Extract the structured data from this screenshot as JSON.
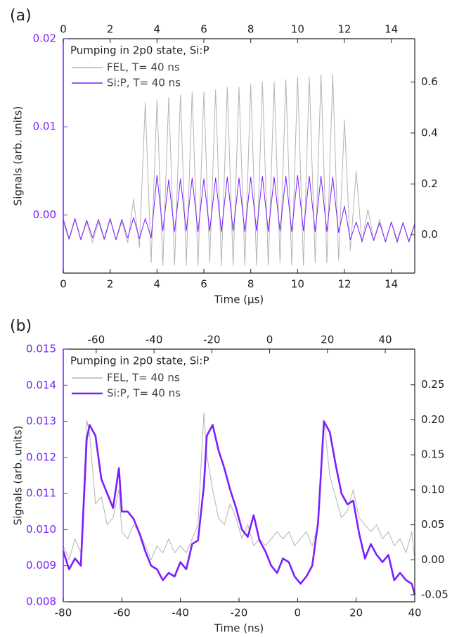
{
  "chart_data": [
    {
      "type": "line",
      "label": "(a)",
      "legend_title": "Pumping in 2p0 state, Si:P",
      "x_label": "Time (µs)",
      "y_label": "Signals (arb. units)",
      "xlim": [
        0,
        15
      ],
      "xticks": [
        0,
        2,
        4,
        6,
        8,
        10,
        12,
        14
      ],
      "x2lim": [
        0,
        15
      ],
      "x2ticks": [
        0,
        2,
        4,
        6,
        8,
        10,
        12,
        14
      ],
      "ylim": [
        -0.0066,
        0.02
      ],
      "yticks": [
        {
          "value": 0,
          "label": "0.00"
        },
        {
          "value": 0.01,
          "label": "0.01"
        },
        {
          "value": 0.02,
          "label": "0.02"
        }
      ],
      "y2lim": [
        -0.15,
        0.77
      ],
      "y2ticks": [
        {
          "value": 0,
          "label": "0.0"
        },
        {
          "value": 0.2,
          "label": "0.2"
        },
        {
          "value": 0.4,
          "label": "0.4"
        },
        {
          "value": 0.6,
          "label": "0.6"
        }
      ],
      "x": [
        0,
        0.25,
        0.5,
        0.75,
        1,
        1.25,
        1.5,
        1.75,
        2,
        2.25,
        2.5,
        2.75,
        3,
        3.25,
        3.5,
        3.75,
        4,
        4.25,
        4.5,
        4.75,
        5,
        5.25,
        5.5,
        5.75,
        6,
        6.25,
        6.5,
        6.75,
        7,
        7.25,
        7.5,
        7.75,
        8,
        8.25,
        8.5,
        8.75,
        9,
        9.25,
        9.5,
        9.75,
        10,
        10.25,
        10.5,
        10.75,
        11,
        11.25,
        11.5,
        11.75,
        12,
        12.25,
        12.5,
        12.75,
        13,
        13.25,
        13.5,
        13.75,
        14,
        14.25,
        14.5,
        14.75,
        15
      ],
      "series": [
        {
          "name": "FEL, T= 40 ns",
          "color": "#b4b4b4",
          "axis": "y2",
          "values": [
            0.05,
            -0.02,
            0.06,
            -0.02,
            0.05,
            -0.03,
            0.05,
            -0.02,
            0.06,
            -0.02,
            0.05,
            -0.03,
            0.14,
            -0.05,
            0.52,
            -0.11,
            0.53,
            -0.12,
            0.54,
            -0.12,
            0.55,
            -0.12,
            0.56,
            -0.12,
            0.56,
            -0.11,
            0.57,
            -0.12,
            0.58,
            -0.12,
            0.58,
            -0.12,
            0.59,
            -0.12,
            0.6,
            -0.12,
            0.6,
            -0.11,
            0.61,
            -0.12,
            0.62,
            -0.12,
            0.62,
            -0.11,
            0.63,
            -0.11,
            0.63,
            -0.1,
            0.45,
            -0.06,
            0.25,
            -0.03,
            0.1,
            -0.02,
            0.06,
            -0.03,
            0.05,
            -0.02,
            0.05,
            -0.03,
            0.04
          ]
        },
        {
          "name": "Si:P, T= 40 ns",
          "color": "#7b1fff",
          "values": [
            -0.0005,
            -0.0027,
            -0.0004,
            -0.0028,
            -0.0006,
            -0.0026,
            -0.0005,
            -0.0027,
            -0.0004,
            -0.0028,
            -0.0005,
            -0.0026,
            -0.0003,
            -0.0027,
            -0.0004,
            -0.0026,
            0.0045,
            -0.0018,
            0.004,
            -0.0019,
            0.0041,
            -0.0018,
            0.0042,
            -0.0019,
            0.0041,
            -0.0018,
            0.0042,
            -0.0019,
            0.0043,
            -0.0018,
            0.0042,
            -0.0019,
            0.0043,
            -0.0018,
            0.0044,
            -0.0019,
            0.0043,
            -0.0018,
            0.0044,
            -0.0019,
            0.0045,
            -0.0018,
            0.0044,
            -0.0019,
            0.0044,
            -0.0019,
            0.0043,
            -0.002,
            0.001,
            -0.0028,
            -0.0008,
            -0.003,
            -0.0008,
            -0.0029,
            -0.0009,
            -0.003,
            -0.0008,
            -0.0031,
            -0.0009,
            -0.003,
            -0.001
          ]
        }
      ]
    },
    {
      "type": "line",
      "label": "(b)",
      "legend_title": "Pumping in 2p0 state, Si:P",
      "x_label": "Time (ns)",
      "y_label": "Signals (arb. units)",
      "xlim": [
        -80,
        40
      ],
      "xticks": [
        -80,
        -60,
        -40,
        -20,
        0,
        20,
        40
      ],
      "x2lim": [
        -71.4,
        50.2
      ],
      "x2ticks": [
        -60,
        -40,
        -20,
        0,
        20,
        40
      ],
      "ylim": [
        0.008,
        0.015
      ],
      "yticks": [
        0.008,
        0.009,
        {
          "value": 0.01,
          "label": "0.010"
        },
        0.011,
        0.012,
        0.013,
        0.014,
        0.015
      ],
      "y2lim": [
        -0.06,
        0.301
      ],
      "y2ticks": [
        -0.05,
        {
          "value": 0,
          "label": "0.00"
        },
        0.05,
        {
          "value": 0.1,
          "label": "0.10"
        },
        0.15,
        {
          "value": 0.2,
          "label": "0.20"
        },
        0.25
      ],
      "x": [
        -80,
        -78,
        -76,
        -74,
        -72,
        -71,
        -69,
        -67,
        -65,
        -63,
        -61,
        -60,
        -58,
        -56,
        -54,
        -52,
        -50,
        -48,
        -46,
        -44,
        -42,
        -40,
        -38,
        -36,
        -34,
        -32,
        -31,
        -29,
        -27,
        -25,
        -23,
        -21,
        -19,
        -17,
        -15,
        -13,
        -11,
        -9,
        -7,
        -5,
        -3,
        -1,
        1,
        3,
        5,
        7,
        9,
        11,
        13,
        15,
        17,
        19,
        21,
        23,
        25,
        27,
        29,
        31,
        33,
        35,
        37,
        39,
        40
      ],
      "series": [
        {
          "name": "FEL, T= 40 ns",
          "color": "#b4b4b4",
          "axis": "y2",
          "values": [
            0.02,
            0,
            0.03,
            0.01,
            0.2,
            0.18,
            0.08,
            0.09,
            0.05,
            0.06,
            0.1,
            0.04,
            0.03,
            0.05,
            0.04,
            0.02,
            0,
            0.02,
            0.01,
            0.03,
            0.01,
            0.02,
            0.01,
            0.03,
            0.05,
            0.21,
            0.15,
            0.1,
            0.06,
            0.05,
            0.08,
            0.06,
            0.03,
            0.05,
            0.02,
            0.03,
            0.02,
            0.03,
            0.04,
            0.03,
            0.04,
            0.02,
            0.03,
            0.04,
            0.02,
            0.05,
            0.2,
            0.12,
            0.09,
            0.06,
            0.07,
            0.1,
            0.06,
            0.05,
            0.04,
            0.05,
            0.03,
            0.04,
            0.02,
            0.03,
            0.01,
            0.04,
            0
          ]
        },
        {
          "name": "Si:P, T= 40 ns",
          "color": "#7b1fff",
          "values": [
            0.0094,
            0.0089,
            0.0092,
            0.009,
            0.0125,
            0.0129,
            0.0126,
            0.0114,
            0.011,
            0.0106,
            0.0117,
            0.0105,
            0.0105,
            0.0103,
            0.0099,
            0.0094,
            0.009,
            0.0089,
            0.0086,
            0.0088,
            0.0087,
            0.0091,
            0.0089,
            0.0096,
            0.0097,
            0.0112,
            0.0126,
            0.0129,
            0.0122,
            0.0117,
            0.0111,
            0.0106,
            0.01,
            0.0098,
            0.0104,
            0.0097,
            0.0094,
            0.009,
            0.0088,
            0.0092,
            0.0091,
            0.0087,
            0.0085,
            0.0087,
            0.009,
            0.0102,
            0.013,
            0.0127,
            0.0118,
            0.011,
            0.0107,
            0.0108,
            0.0099,
            0.0092,
            0.0096,
            0.0093,
            0.0091,
            0.0093,
            0.0086,
            0.0088,
            0.0086,
            0.0085,
            0.0082
          ]
        }
      ]
    }
  ]
}
